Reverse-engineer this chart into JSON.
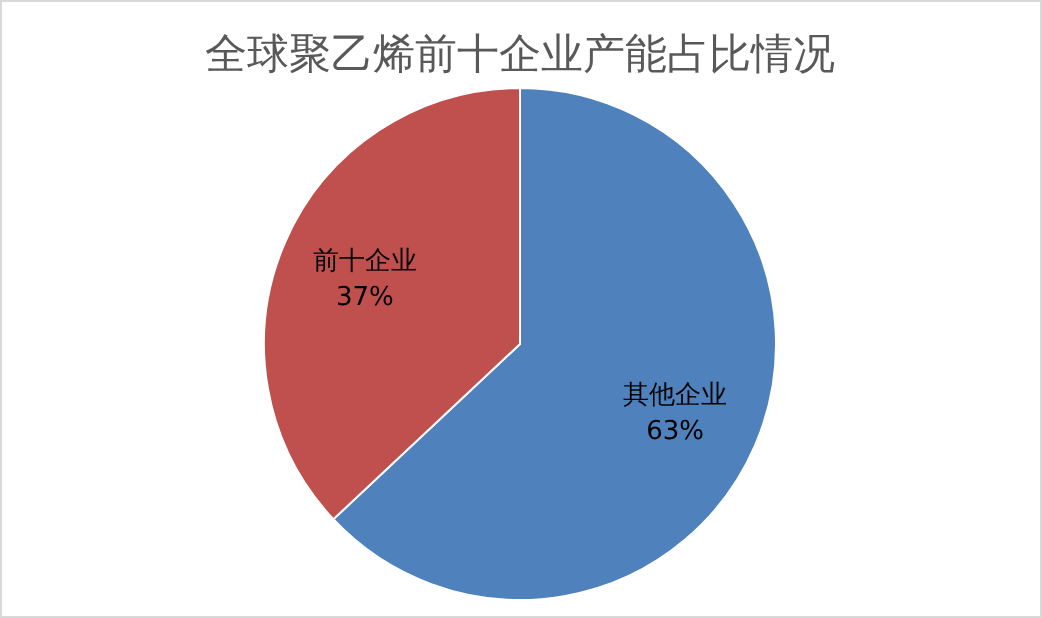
{
  "chart_data": {
    "type": "pie",
    "title": "全球聚乙烯前十企业产能占比情况",
    "categories": [
      "其他企业",
      "前十企业"
    ],
    "values": [
      63,
      37
    ],
    "colors": [
      "#4f81bd",
      "#c0504d"
    ],
    "value_labels": [
      "63%",
      "37%"
    ]
  }
}
